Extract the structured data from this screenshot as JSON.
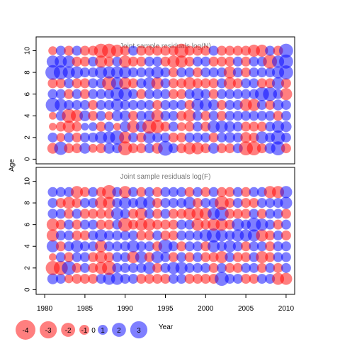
{
  "chart_data": {
    "type": "scatter",
    "shared": {
      "ylabel": "Age",
      "xlabel": "Year",
      "xlim": [
        1980,
        2010
      ],
      "ylim": [
        0,
        10
      ],
      "x_ticks": [
        1980,
        1985,
        1990,
        1995,
        2000,
        2005,
        2010
      ],
      "y_ticks": [
        0,
        2,
        4,
        6,
        8,
        10
      ],
      "colors": {
        "positive": "#0000ff",
        "negative": "#ff0000"
      },
      "legend": {
        "placement": "bottom-left",
        "values": [
          -4,
          -3,
          -2,
          -1,
          0,
          1,
          2,
          3
        ],
        "labels": [
          "-4",
          "-3",
          "-2",
          "-1",
          "0",
          "1",
          "2",
          "3"
        ]
      }
    },
    "panels": [
      {
        "title": "Joint sample residuals log(N)",
        "years": [
          1981,
          1982,
          1983,
          1984,
          1985,
          1986,
          1987,
          1988,
          1989,
          1990,
          1991,
          1992,
          1993,
          1994,
          1995,
          1996,
          1997,
          1998,
          1999,
          2000,
          2001,
          2002,
          2003,
          2004,
          2005,
          2006,
          2007,
          2008,
          2009,
          2010
        ],
        "ages": [
          1,
          2,
          3,
          4,
          5,
          6,
          7,
          8,
          9,
          10
        ],
        "residuals": [
          [
            -1.2,
            1.8,
            -1.0,
            -1.0,
            1.2,
            -0.8,
            -1.0,
            1.2,
            1.0,
            -2.0,
            -1.0,
            -1.0,
            1.0,
            -1.2,
            2.2,
            1.0,
            -1.0,
            -1.5,
            -1.5,
            -1.0,
            1.2,
            -1.0,
            -1.0,
            1.0,
            -2.0,
            -2.0,
            -1.0,
            1.2,
            2.0,
            -1.0
          ],
          [
            1.0,
            -0.8,
            1.0,
            -1.0,
            1.0,
            1.0,
            1.5,
            1.5,
            2.0,
            -1.5,
            1.0,
            -1.0,
            1.5,
            1.0,
            1.0,
            -1.0,
            -1.0,
            1.0,
            1.0,
            1.0,
            -1.0,
            1.0,
            1.2,
            1.0,
            -1.2,
            -1.0,
            1.5,
            1.0,
            2.0,
            1.0
          ],
          [
            -0.6,
            -1.0,
            -1.5,
            -1.0,
            0.6,
            0.8,
            -1.0,
            1.0,
            -0.6,
            1.2,
            -1.5,
            1.2,
            -2.0,
            -1.8,
            -1.0,
            1.0,
            -0.8,
            -1.0,
            1.0,
            -1.0,
            1.5,
            1.5,
            1.2,
            1.0,
            -1.0,
            -1.0,
            -1.0,
            1.0,
            1.5,
            1.2
          ],
          [
            -0.6,
            1.0,
            -2.0,
            -1.5,
            1.2,
            -1.0,
            1.0,
            -0.8,
            1.2,
            1.2,
            -1.0,
            1.0,
            1.2,
            -1.5,
            1.0,
            1.0,
            -1.0,
            -1.5,
            1.0,
            -1.0,
            1.0,
            -1.0,
            1.0,
            1.0,
            1.0,
            1.0,
            1.0,
            1.0,
            -1.0,
            1.0
          ],
          [
            2.0,
            1.5,
            1.0,
            1.0,
            1.0,
            -1.0,
            1.0,
            1.0,
            1.5,
            1.0,
            1.0,
            1.0,
            1.0,
            -1.0,
            1.0,
            1.0,
            1.0,
            -1.0,
            1.5,
            1.5,
            1.2,
            -1.0,
            1.0,
            1.0,
            -1.5,
            -1.5,
            1.0,
            -1.0,
            1.2,
            1.0
          ],
          [
            1.0,
            1.0,
            -1.0,
            1.0,
            -1.0,
            1.0,
            1.0,
            1.0,
            1.8,
            1.8,
            1.0,
            -1.0,
            1.0,
            1.0,
            1.0,
            -1.0,
            -1.0,
            1.0,
            1.5,
            1.0,
            -1.0,
            1.0,
            1.0,
            1.0,
            1.0,
            1.0,
            2.0,
            2.0,
            1.0,
            -1.5
          ],
          [
            -1.0,
            -1.0,
            1.0,
            -1.0,
            -1.0,
            1.0,
            1.0,
            -2.0,
            1.5,
            -1.5,
            -1.0,
            1.0,
            1.5,
            -1.5,
            1.0,
            -1.0,
            -1.0,
            -1.5,
            -1.0,
            -1.0,
            -1.0,
            1.0,
            -1.5,
            -1.0,
            1.0,
            1.0,
            -1.0,
            -1.0,
            1.5,
            -1.0
          ],
          [
            2.2,
            2.0,
            1.5,
            1.5,
            1.0,
            1.0,
            1.5,
            1.5,
            1.5,
            1.5,
            1.0,
            1.0,
            1.0,
            1.5,
            1.0,
            -1.0,
            1.0,
            1.0,
            -1.0,
            1.0,
            1.0,
            1.0,
            -1.5,
            1.0,
            -1.0,
            1.0,
            1.0,
            1.0,
            1.5,
            2.0
          ],
          [
            1.5,
            1.5,
            1.5,
            -1.0,
            -1.0,
            1.0,
            -1.5,
            -1.0,
            1.0,
            -1.5,
            -1.0,
            -1.0,
            1.0,
            1.0,
            -1.0,
            -1.5,
            -1.5,
            -1.0,
            1.0,
            1.0,
            -1.0,
            -1.0,
            -1.0,
            1.0,
            -1.0,
            1.0,
            1.0,
            -2.0,
            1.5,
            2.0
          ],
          [
            -0.8,
            1.0,
            -1.0,
            1.0,
            -1.0,
            -1.0,
            -2.0,
            -2.0,
            -1.5,
            -1.0,
            1.0,
            -1.0,
            -1.0,
            -1.0,
            -1.0,
            -1.0,
            -2.0,
            -1.0,
            -1.0,
            -1.0,
            1.0,
            -1.0,
            -1.0,
            -1.0,
            -1.0,
            -1.5,
            -1.5,
            1.0,
            -1.0,
            2.0
          ]
        ]
      },
      {
        "title": "Joint sample residuals log(F)",
        "years": [
          1981,
          1982,
          1983,
          1984,
          1985,
          1986,
          1987,
          1988,
          1989,
          1990,
          1991,
          1992,
          1993,
          1994,
          1995,
          1996,
          1997,
          1998,
          1999,
          2000,
          2001,
          2002,
          2003,
          2004,
          2005,
          2006,
          2007,
          2008,
          2009,
          2010
        ],
        "ages": [
          1,
          2,
          3,
          4,
          5,
          6,
          7,
          8,
          9
        ],
        "residuals": [
          [
            1.2,
            1.0,
            -0.8,
            -1.0,
            -1.0,
            -1.0,
            1.0,
            1.5,
            1.5,
            1.0,
            1.0,
            -1.0,
            -1.0,
            -1.0,
            -1.0,
            1.0,
            1.0,
            -1.0,
            -1.0,
            -1.0,
            -1.0,
            2.0,
            1.0,
            1.0,
            -1.0,
            -1.0,
            1.0,
            1.0,
            -1.5,
            -1.5
          ],
          [
            -2.0,
            -2.0,
            2.0,
            -1.0,
            1.0,
            -1.0,
            -1.5,
            -2.0,
            1.0,
            1.0,
            1.0,
            1.0,
            1.5,
            -1.0,
            1.0,
            1.5,
            1.5,
            1.0,
            1.0,
            1.0,
            -1.0,
            1.0,
            -1.0,
            -1.0,
            1.0,
            1.0,
            -1.0,
            1.0,
            -1.0,
            1.0
          ],
          [
            -0.6,
            1.0,
            -1.0,
            1.0,
            1.0,
            -1.0,
            -1.5,
            -1.0,
            1.0,
            1.0,
            -1.5,
            1.5,
            -1.0,
            1.5,
            1.0,
            -1.0,
            1.0,
            -1.0,
            1.0,
            -1.0,
            -1.0,
            -1.5,
            1.0,
            -1.0,
            -1.0,
            1.0,
            -1.5,
            -1.0,
            1.0,
            1.0
          ],
          [
            1.5,
            -1.0,
            1.0,
            1.5,
            1.0,
            1.0,
            -1.5,
            1.0,
            1.0,
            1.0,
            1.5,
            1.0,
            1.0,
            -1.0,
            2.0,
            1.0,
            -1.0,
            1.0,
            1.0,
            -1.0,
            1.5,
            1.0,
            1.5,
            1.0,
            -1.0,
            1.0,
            1.0,
            -1.0,
            1.0,
            1.0
          ],
          [
            -1.5,
            1.0,
            1.0,
            -1.0,
            -1.0,
            1.0,
            1.5,
            1.0,
            1.0,
            1.0,
            1.0,
            -1.0,
            -1.0,
            1.0,
            -1.0,
            -1.0,
            1.0,
            1.0,
            1.0,
            1.5,
            2.0,
            1.5,
            1.0,
            1.5,
            1.5,
            1.5,
            -1.5,
            -1.0,
            1.0,
            -1.0
          ],
          [
            -1.5,
            -1.0,
            1.0,
            -1.0,
            1.0,
            1.0,
            -1.0,
            -1.0,
            1.0,
            -2.0,
            -1.0,
            -1.5,
            -1.5,
            -1.0,
            -1.0,
            -1.0,
            1.0,
            1.0,
            -1.5,
            -1.0,
            -1.5,
            -1.5,
            -1.0,
            1.5,
            1.0,
            2.0,
            1.5,
            1.0,
            -1.0,
            1.0
          ],
          [
            1.0,
            1.0,
            -1.0,
            1.0,
            -1.0,
            -1.0,
            -1.0,
            -1.0,
            1.5,
            1.0,
            -1.0,
            -1.5,
            1.0,
            -1.0,
            1.0,
            -1.0,
            -1.0,
            -1.5,
            -1.5,
            -1.5,
            1.5,
            2.0,
            -1.0,
            -1.0,
            -1.0,
            1.0,
            -1.0,
            1.0,
            1.0,
            -1.0
          ],
          [
            1.0,
            -1.0,
            -1.5,
            -1.0,
            1.0,
            1.0,
            -1.5,
            -1.5,
            1.0,
            1.5,
            1.0,
            1.5,
            1.5,
            -1.0,
            1.0,
            1.0,
            1.0,
            1.5,
            -1.0,
            1.0,
            1.0,
            -2.0,
            -1.0,
            1.0,
            -1.0,
            -1.0,
            1.0,
            1.0,
            1.0,
            1.5
          ],
          [
            1.0,
            1.0,
            1.0,
            -1.5,
            -1.0,
            1.0,
            -1.0,
            -2.0,
            1.0,
            -1.5,
            1.0,
            -1.0,
            1.0,
            -1.0,
            1.0,
            1.0,
            1.0,
            -1.0,
            1.0,
            -1.0,
            1.0,
            -1.0,
            -1.0,
            1.0,
            -1.0,
            1.0,
            1.0,
            -1.5,
            -1.5,
            1.5
          ]
        ]
      }
    ]
  }
}
